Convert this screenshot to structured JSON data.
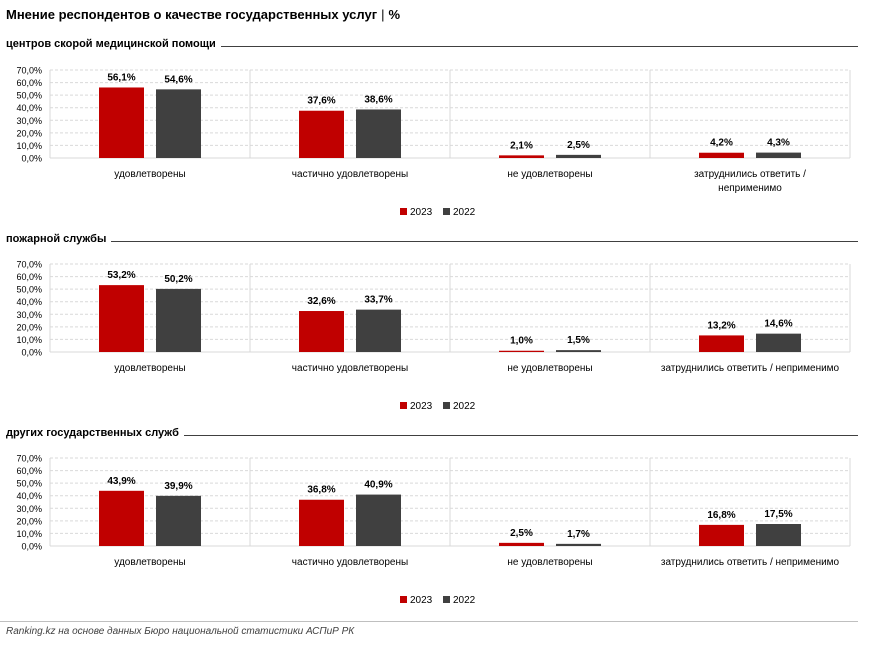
{
  "title": "Мнение респондентов о качестве государственных услуг",
  "title_unit": "%",
  "title_separator": "|",
  "footer": "Ranking.kz на основе данных Бюро национальной статистики АСПиР РК",
  "colors": {
    "series_2023": "#c00000",
    "series_2022": "#404040",
    "grid": "#d9d9d9",
    "rule": "#404040"
  },
  "sections": [
    {
      "title": "центров скорой медицинской помощи"
    },
    {
      "title": "пожарной службы"
    },
    {
      "title": "других государственных служб"
    }
  ],
  "chart_data": [
    {
      "type": "bar",
      "categories": [
        [
          "удовлетворены"
        ],
        [
          "частично удовлетворены"
        ],
        [
          "не удовлетворены"
        ],
        [
          "затруднились ответить /",
          "неприменимо"
        ]
      ],
      "series": [
        {
          "name": "2023",
          "values": [
            56.1,
            37.6,
            2.1,
            4.2
          ],
          "labels": [
            "56,1%",
            "37,6%",
            "2,1%",
            "4,2%"
          ]
        },
        {
          "name": "2022",
          "values": [
            54.6,
            38.6,
            2.5,
            4.3
          ],
          "labels": [
            "54,6%",
            "38,6%",
            "2,5%",
            "4,3%"
          ]
        }
      ],
      "ylim": [
        0,
        70
      ],
      "yticks": [
        "0,0%",
        "10,0%",
        "20,0%",
        "30,0%",
        "40,0%",
        "50,0%",
        "60,0%",
        "70,0%"
      ],
      "legend_position": "bottom",
      "grid": true
    },
    {
      "type": "bar",
      "categories": [
        [
          "удовлетворены"
        ],
        [
          "частично удовлетворены"
        ],
        [
          "не удовлетворены"
        ],
        [
          "затруднились ответить / неприменимо"
        ]
      ],
      "series": [
        {
          "name": "2023",
          "values": [
            53.2,
            32.6,
            1.0,
            13.2
          ],
          "labels": [
            "53,2%",
            "32,6%",
            "1,0%",
            "13,2%"
          ]
        },
        {
          "name": "2022",
          "values": [
            50.2,
            33.7,
            1.5,
            14.6
          ],
          "labels": [
            "50,2%",
            "33,7%",
            "1,5%",
            "14,6%"
          ]
        }
      ],
      "ylim": [
        0,
        70
      ],
      "yticks": [
        "0,0%",
        "10,0%",
        "20,0%",
        "30,0%",
        "40,0%",
        "50,0%",
        "60,0%",
        "70,0%"
      ],
      "legend_position": "bottom",
      "grid": true
    },
    {
      "type": "bar",
      "categories": [
        [
          "удовлетворены"
        ],
        [
          "частично удовлетворены"
        ],
        [
          "не удовлетворены"
        ],
        [
          "затруднились ответить / неприменимо"
        ]
      ],
      "series": [
        {
          "name": "2023",
          "values": [
            43.9,
            36.8,
            2.5,
            16.8
          ],
          "labels": [
            "43,9%",
            "36,8%",
            "2,5%",
            "16,8%"
          ]
        },
        {
          "name": "2022",
          "values": [
            39.9,
            40.9,
            1.7,
            17.5
          ],
          "labels": [
            "39,9%",
            "40,9%",
            "1,7%",
            "17,5%"
          ]
        }
      ],
      "ylim": [
        0,
        70
      ],
      "yticks": [
        "0,0%",
        "10,0%",
        "20,0%",
        "30,0%",
        "40,0%",
        "50,0%",
        "60,0%",
        "70,0%"
      ],
      "legend_position": "bottom",
      "grid": true
    }
  ]
}
